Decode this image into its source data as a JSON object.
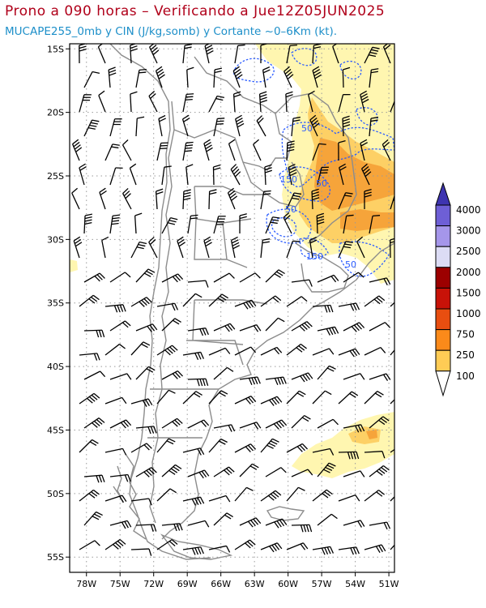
{
  "title": "Prono a 090 horas – Verificando a Jue12Z05JUN2025",
  "subtitle": "MUCAPE255_0mb y CIN (J/kg,somb) y Cortante ~0–6Km (kt).",
  "axes": {
    "lat_labels": [
      "15S",
      "20S",
      "25S",
      "30S",
      "35S",
      "40S",
      "45S",
      "50S",
      "55S"
    ],
    "lat_values": [
      -15,
      -20,
      -25,
      -30,
      -35,
      -40,
      -45,
      -50,
      -55
    ],
    "lon_labels": [
      "78W",
      "75W",
      "72W",
      "69W",
      "66W",
      "63W",
      "60W",
      "57W",
      "54W",
      "51W"
    ],
    "lon_values": [
      -78,
      -75,
      -72,
      -69,
      -66,
      -63,
      -60,
      -57,
      -54,
      -51
    ]
  },
  "colorbar": {
    "levels": [
      "100",
      "250",
      "750",
      "1000",
      "1500",
      "2000",
      "2500",
      "3000",
      "4000"
    ],
    "colors": [
      "#fffac0",
      "#ffcc55",
      "#fb8a1a",
      "#e84e10",
      "#c81208",
      "#9c0000",
      "#dcdcf5",
      "#a596ea",
      "#6e5fd6",
      "#3e34b0"
    ]
  },
  "cin_contour_labels": [
    "50",
    "150",
    "50",
    "50",
    "150",
    "50"
  ],
  "colors": {
    "cape_light": "#fff6b0",
    "cape_mid": "#fdd065",
    "cape_orange": "#f6a43a",
    "cin_contour": "#2b5cff",
    "borders": "#8c8c8c",
    "grid": "#9a9a9a",
    "title": "#b0001a",
    "subtitle": "#1d8fc9"
  }
}
